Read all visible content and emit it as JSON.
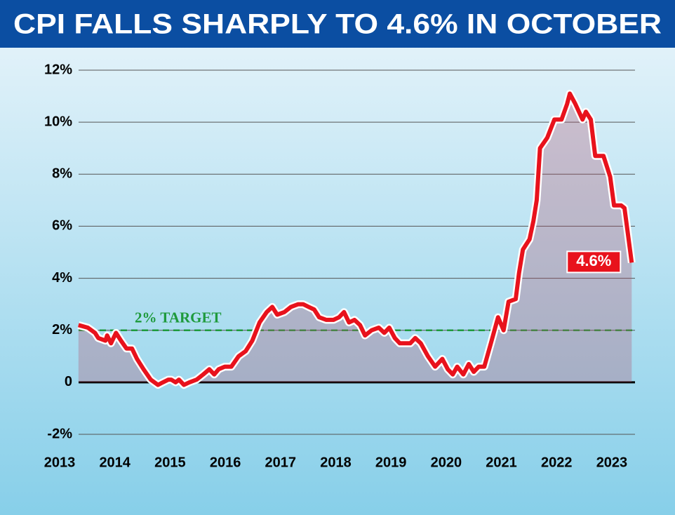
{
  "chart_data": {
    "type": "line",
    "title": "CPI FALLS SHARPLY TO 4.6% IN OCTOBER",
    "x": [
      2013.34,
      2013.51,
      2013.64,
      2013.7,
      2013.83,
      2013.86,
      2013.93,
      2014.02,
      2014.11,
      2014.21,
      2014.31,
      2014.4,
      2014.52,
      2014.65,
      2014.78,
      2014.87,
      2014.97,
      2015.02,
      2015.1,
      2015.16,
      2015.25,
      2015.35,
      2015.48,
      2015.6,
      2015.71,
      2015.8,
      2015.88,
      2015.99,
      2016.11,
      2016.24,
      2016.37,
      2016.49,
      2016.62,
      2016.75,
      2016.85,
      2016.94,
      2017.07,
      2017.19,
      2017.32,
      2017.41,
      2017.51,
      2017.61,
      2017.7,
      2017.83,
      2017.96,
      2018.06,
      2018.15,
      2018.24,
      2018.34,
      2018.44,
      2018.53,
      2018.65,
      2018.78,
      2018.88,
      2018.97,
      2019.07,
      2019.16,
      2019.26,
      2019.35,
      2019.44,
      2019.54,
      2019.67,
      2019.8,
      2019.93,
      2020.03,
      2020.12,
      2020.2,
      2020.31,
      2020.41,
      2020.5,
      2020.59,
      2020.69,
      2020.81,
      2020.94,
      2021.04,
      2021.13,
      2021.26,
      2021.32,
      2021.39,
      2021.51,
      2021.58,
      2021.64,
      2021.7,
      2021.83,
      2021.96,
      2022.09,
      2022.19,
      2022.24,
      2022.34,
      2022.47,
      2022.53,
      2022.62,
      2022.7,
      2022.85,
      2022.97,
      2023.04,
      2023.17,
      2023.23,
      2023.36
    ],
    "series": [
      {
        "name": "CPI",
        "color": "#e8121c",
        "values": [
          2.2,
          2.1,
          1.9,
          1.7,
          1.6,
          1.8,
          1.5,
          1.9,
          1.6,
          1.3,
          1.3,
          0.9,
          0.5,
          0.1,
          -0.1,
          0.0,
          0.1,
          0.1,
          0.0,
          0.1,
          -0.1,
          0.0,
          0.1,
          0.3,
          0.5,
          0.3,
          0.5,
          0.6,
          0.6,
          1.0,
          1.2,
          1.6,
          2.3,
          2.7,
          2.9,
          2.6,
          2.7,
          2.9,
          3.0,
          3.0,
          2.9,
          2.8,
          2.5,
          2.4,
          2.4,
          2.5,
          2.7,
          2.3,
          2.4,
          2.2,
          1.8,
          2.0,
          2.1,
          1.9,
          2.1,
          1.7,
          1.5,
          1.5,
          1.5,
          1.7,
          1.5,
          1.0,
          0.6,
          0.9,
          0.5,
          0.3,
          0.6,
          0.3,
          0.7,
          0.4,
          0.6,
          0.6,
          1.5,
          2.5,
          2.0,
          3.1,
          3.2,
          4.2,
          5.1,
          5.5,
          6.2,
          7.0,
          9.0,
          9.4,
          10.1,
          10.1,
          10.7,
          11.1,
          10.7,
          10.1,
          10.4,
          10.1,
          8.7,
          8.7,
          7.9,
          6.8,
          6.8,
          6.7,
          4.6
        ]
      }
    ],
    "end_label": "4.6%",
    "target": 2,
    "target_label": "2% TARGET",
    "target_color": "#1e9a3c",
    "xlim": [
      2013,
      2023.42
    ],
    "xticks": [
      2013,
      2014,
      2015,
      2016,
      2017,
      2018,
      2019,
      2020,
      2021,
      2022,
      2023
    ],
    "ylim": [
      -2,
      12
    ],
    "yticks": [
      {
        "value": -2,
        "label": "-2%"
      },
      0,
      {
        "value": 2,
        "label": "2%"
      },
      {
        "value": 4,
        "label": "4%"
      },
      {
        "value": 6,
        "label": "6%"
      },
      {
        "value": 8,
        "label": "8%"
      },
      {
        "value": 10,
        "label": "10%"
      },
      {
        "value": 12,
        "label": "12%"
      }
    ],
    "grid": true
  }
}
